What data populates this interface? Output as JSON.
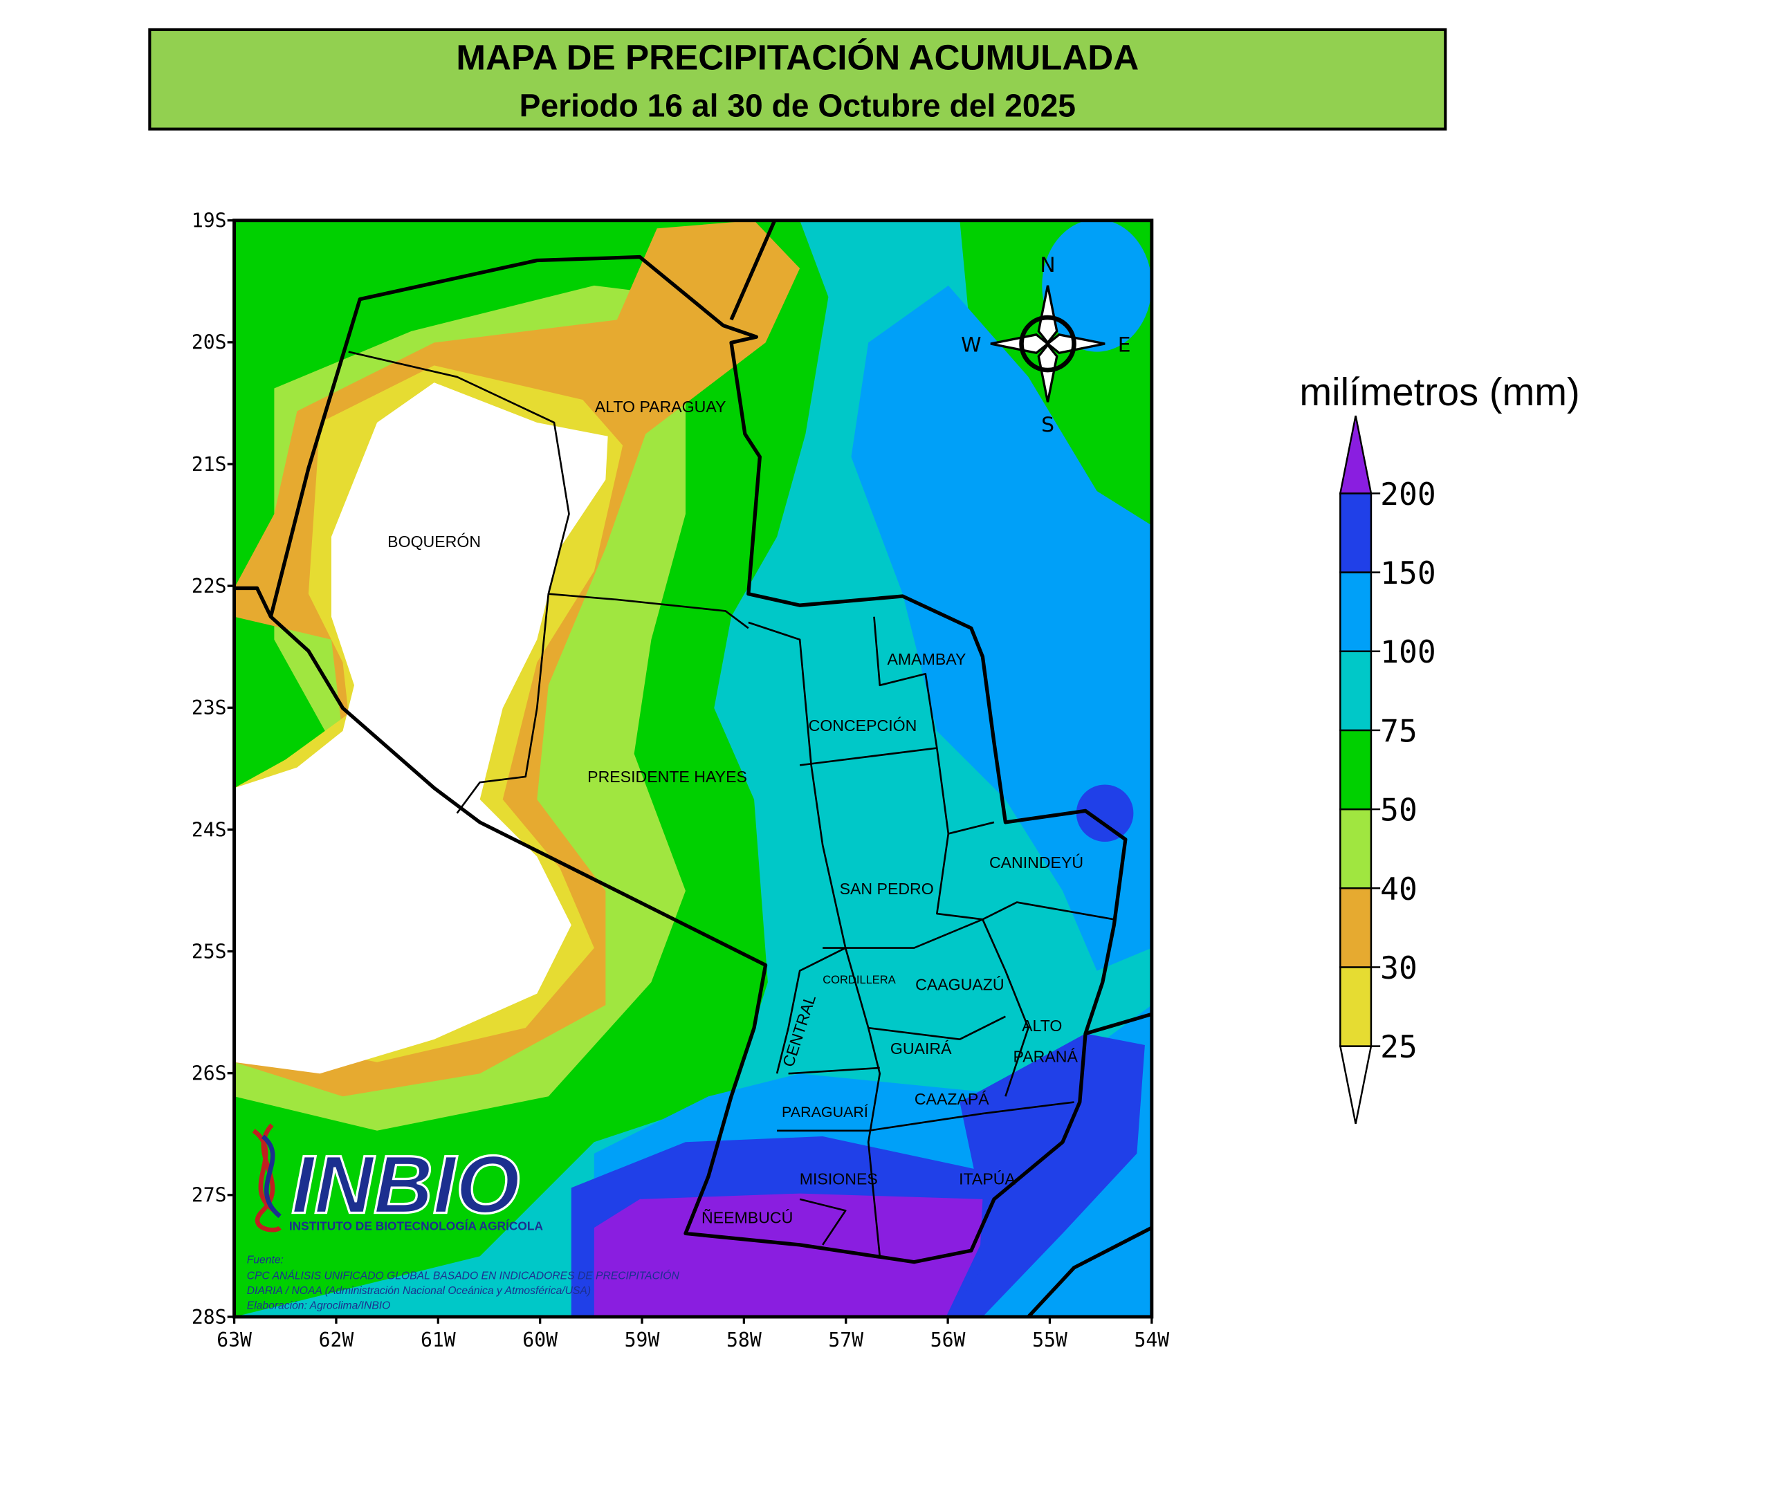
{
  "header": {
    "title": "MAPA DE PRECIPITACIÓN ACUMULADA",
    "subtitle": "Periodo 16 al 30 de Octubre del 2025"
  },
  "map": {
    "lat_labels": [
      "19S",
      "20S",
      "21S",
      "22S",
      "23S",
      "24S",
      "25S",
      "26S",
      "27S",
      "28S"
    ],
    "lon_labels": [
      "63W",
      "62W",
      "61W",
      "60W",
      "59W",
      "58W",
      "57W",
      "56W",
      "55W",
      "54W"
    ],
    "regions": [
      "ALTO PARAGUAY",
      "BOQUERÓN",
      "PRESIDENTE HAYES",
      "CONCEPCIÓN",
      "AMAMBAY",
      "SAN PEDRO",
      "CANINDEYÚ",
      "CORDILLERA",
      "CAAGUAZÚ",
      "CENTRAL",
      "ALTO",
      "PARANÁ",
      "GUAIRÁ",
      "CAAZAPÁ",
      "PARAGUARÍ",
      "MISIONES",
      "ITAPÚA",
      "ÑEEMBUCÚ"
    ],
    "compass": [
      "N",
      "S",
      "E",
      "W"
    ]
  },
  "logo": {
    "name": "INBIO",
    "tagline": "INSTITUTO DE BIOTECNOLOGÍA AGRÍCOLA"
  },
  "source": [
    "Fuente:",
    "CPC ANÁLISIS UNIFICADO GLOBAL BASADO EN INDICADORES DE PRECIPITACIÓN",
    "DIARIA / NOAA (Administración Nacional Oceánica y Atmosférica/USA)",
    "Elaboración: Agroclima/INBIO"
  ],
  "legend": {
    "unit": "milímetros (mm)",
    "levels": [
      25,
      30,
      40,
      50,
      75,
      100,
      150,
      200
    ],
    "colors": [
      "#ffffff",
      "#e6dc32",
      "#e6aa30",
      "#a0e640",
      "#00d000",
      "#00c8c8",
      "#00a0f8",
      "#2040e8",
      "#8a1ee0"
    ]
  }
}
